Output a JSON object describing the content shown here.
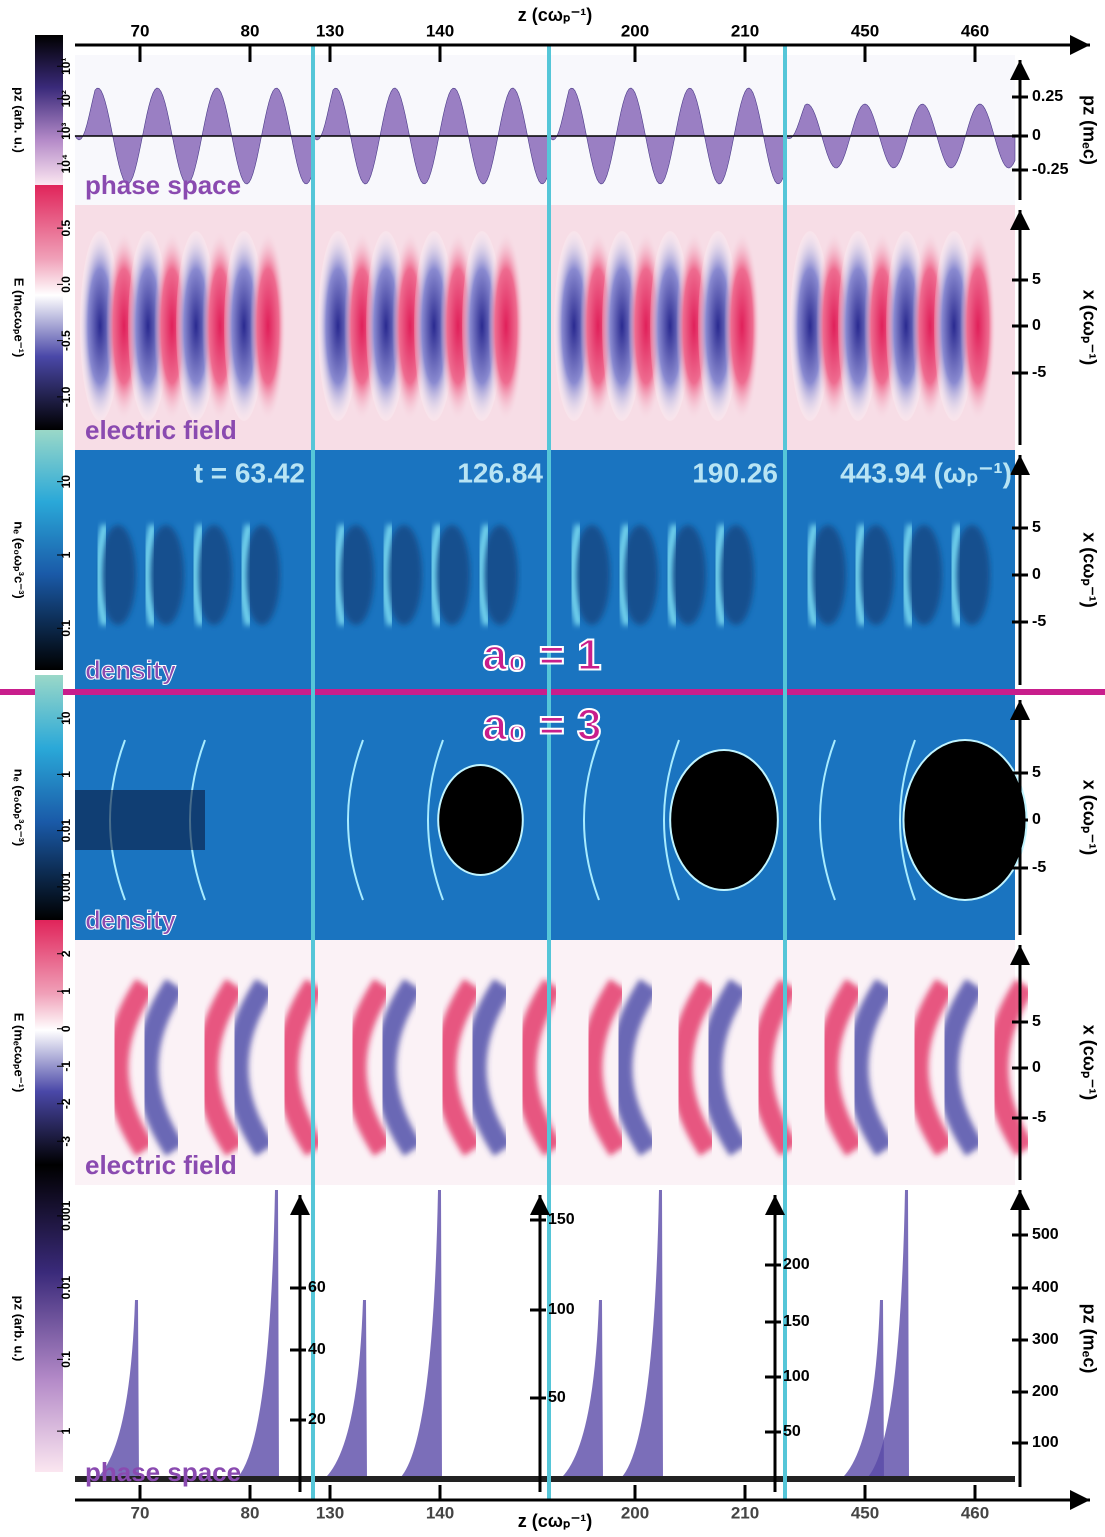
{
  "top_axis": {
    "label": "z (cωₚ⁻¹)",
    "ticks": [
      "70",
      "80",
      "130",
      "140",
      "200",
      "210",
      "450",
      "460"
    ]
  },
  "bottom_axis": {
    "label": "z (cωₚ⁻¹)",
    "ticks": [
      "70",
      "80",
      "130",
      "140",
      "200",
      "210",
      "450",
      "460"
    ]
  },
  "rows": [
    {
      "panel_label": "phase space",
      "colorbar": {
        "label": "pz (arb. u.)",
        "ticks": [
          "10¹",
          "10²",
          "10³",
          "10⁴"
        ]
      },
      "right_axis": {
        "label": "pz (mₑc)",
        "ticks": [
          "0.25",
          "0",
          "-0.25"
        ]
      }
    },
    {
      "panel_label": "electric field",
      "colorbar": {
        "label": "E (mₑcωₚe⁻¹)",
        "ticks": [
          "0.5",
          "0.0",
          "-0.5",
          "-1.0"
        ]
      },
      "right_axis": {
        "label": "x (cωₚ⁻¹)",
        "ticks": [
          "5",
          "0",
          "-5"
        ]
      }
    },
    {
      "panel_label": "density",
      "colorbar": {
        "label": "nₑ (e₀ωₚ³c⁻³)",
        "ticks": [
          "10",
          "1",
          "0.1"
        ]
      },
      "right_axis": {
        "label": "x (cωₚ⁻¹)",
        "ticks": [
          "5",
          "0",
          "-5"
        ]
      }
    },
    {
      "panel_label": "density",
      "colorbar": {
        "label": "nₑ (e₀ωₚ³c⁻³)",
        "ticks": [
          "10",
          "1",
          "0.01",
          "0.001"
        ]
      },
      "right_axis": {
        "label": "x (cωₚ⁻¹)",
        "ticks": [
          "5",
          "0",
          "-5"
        ]
      }
    },
    {
      "panel_label": "electric field",
      "colorbar": {
        "label": "E (mₑcωₚe⁻¹)",
        "ticks": [
          "2",
          "1",
          "0",
          "-1",
          "-2",
          "-3"
        ]
      },
      "right_axis": {
        "label": "x (cωₚ⁻¹)",
        "ticks": [
          "5",
          "0",
          "-5"
        ]
      }
    },
    {
      "panel_label": "phase space",
      "colorbar": {
        "label": "pz (arb. u.)",
        "ticks": [
          "0.001",
          "0.01",
          "0.1",
          "1"
        ]
      },
      "right_axis": {
        "label": "pz (mₑc)",
        "ticks": [
          "500",
          "400",
          "300",
          "200",
          "100"
        ]
      }
    }
  ],
  "inner_axes": [
    {
      "ticks": [
        "60",
        "40",
        "20"
      ]
    },
    {
      "ticks": [
        "150",
        "100",
        "50"
      ]
    },
    {
      "ticks": [
        "200",
        "150",
        "100",
        "50"
      ]
    }
  ],
  "times": [
    "t = 63.42",
    "126.84",
    "190.26",
    "443.94 (ωₚ⁻¹)"
  ],
  "regimes": [
    "a₀ = 1",
    "a₀ = 3"
  ]
}
